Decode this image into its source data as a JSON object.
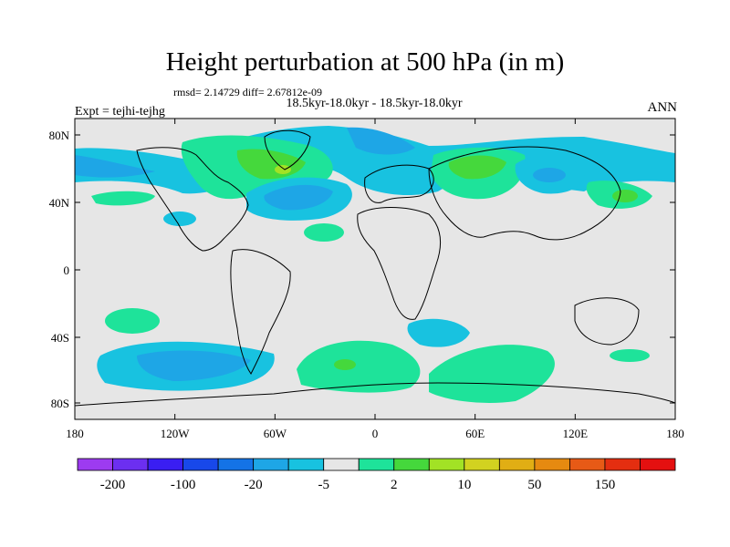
{
  "title": "Height perturbation at 500 hPa (in m)",
  "stats": "rmsd= 2.14729 diff= 2.67812e-09",
  "period": "18.5kyr-18.0kyr - 18.5kyr-18.0kyr",
  "experiment": "Expt = tejhi-tejhg",
  "season": "ANN",
  "axes": {
    "lat_ticks": [
      "80N",
      "40N",
      "0",
      "40S",
      "80S"
    ],
    "lon_ticks": [
      "180",
      "120W",
      "60W",
      "0",
      "60E",
      "120E",
      "180"
    ]
  },
  "colorbar": {
    "colors": [
      "#9d3bf0",
      "#6c2ff0",
      "#3a1ef2",
      "#1848ea",
      "#1473e6",
      "#1ea6e6",
      "#18c2e0",
      "#e6e6e6",
      "#1ee39a",
      "#45d83c",
      "#a2e225",
      "#d2d220",
      "#e1ae14",
      "#e68a10",
      "#e75a16",
      "#e42e10",
      "#e41010"
    ],
    "labels": [
      "-200",
      "-100",
      "-20",
      "-5",
      "2",
      "10",
      "50",
      "150"
    ]
  },
  "field_colors": {
    "land_bg": "#e6e6e6",
    "light_blue": "#18c2e0",
    "mid_blue": "#1ea6e6",
    "deep_blue": "#1473e6",
    "light_green": "#1ee39a",
    "green": "#45d83c",
    "yellow_green": "#a2e225"
  }
}
